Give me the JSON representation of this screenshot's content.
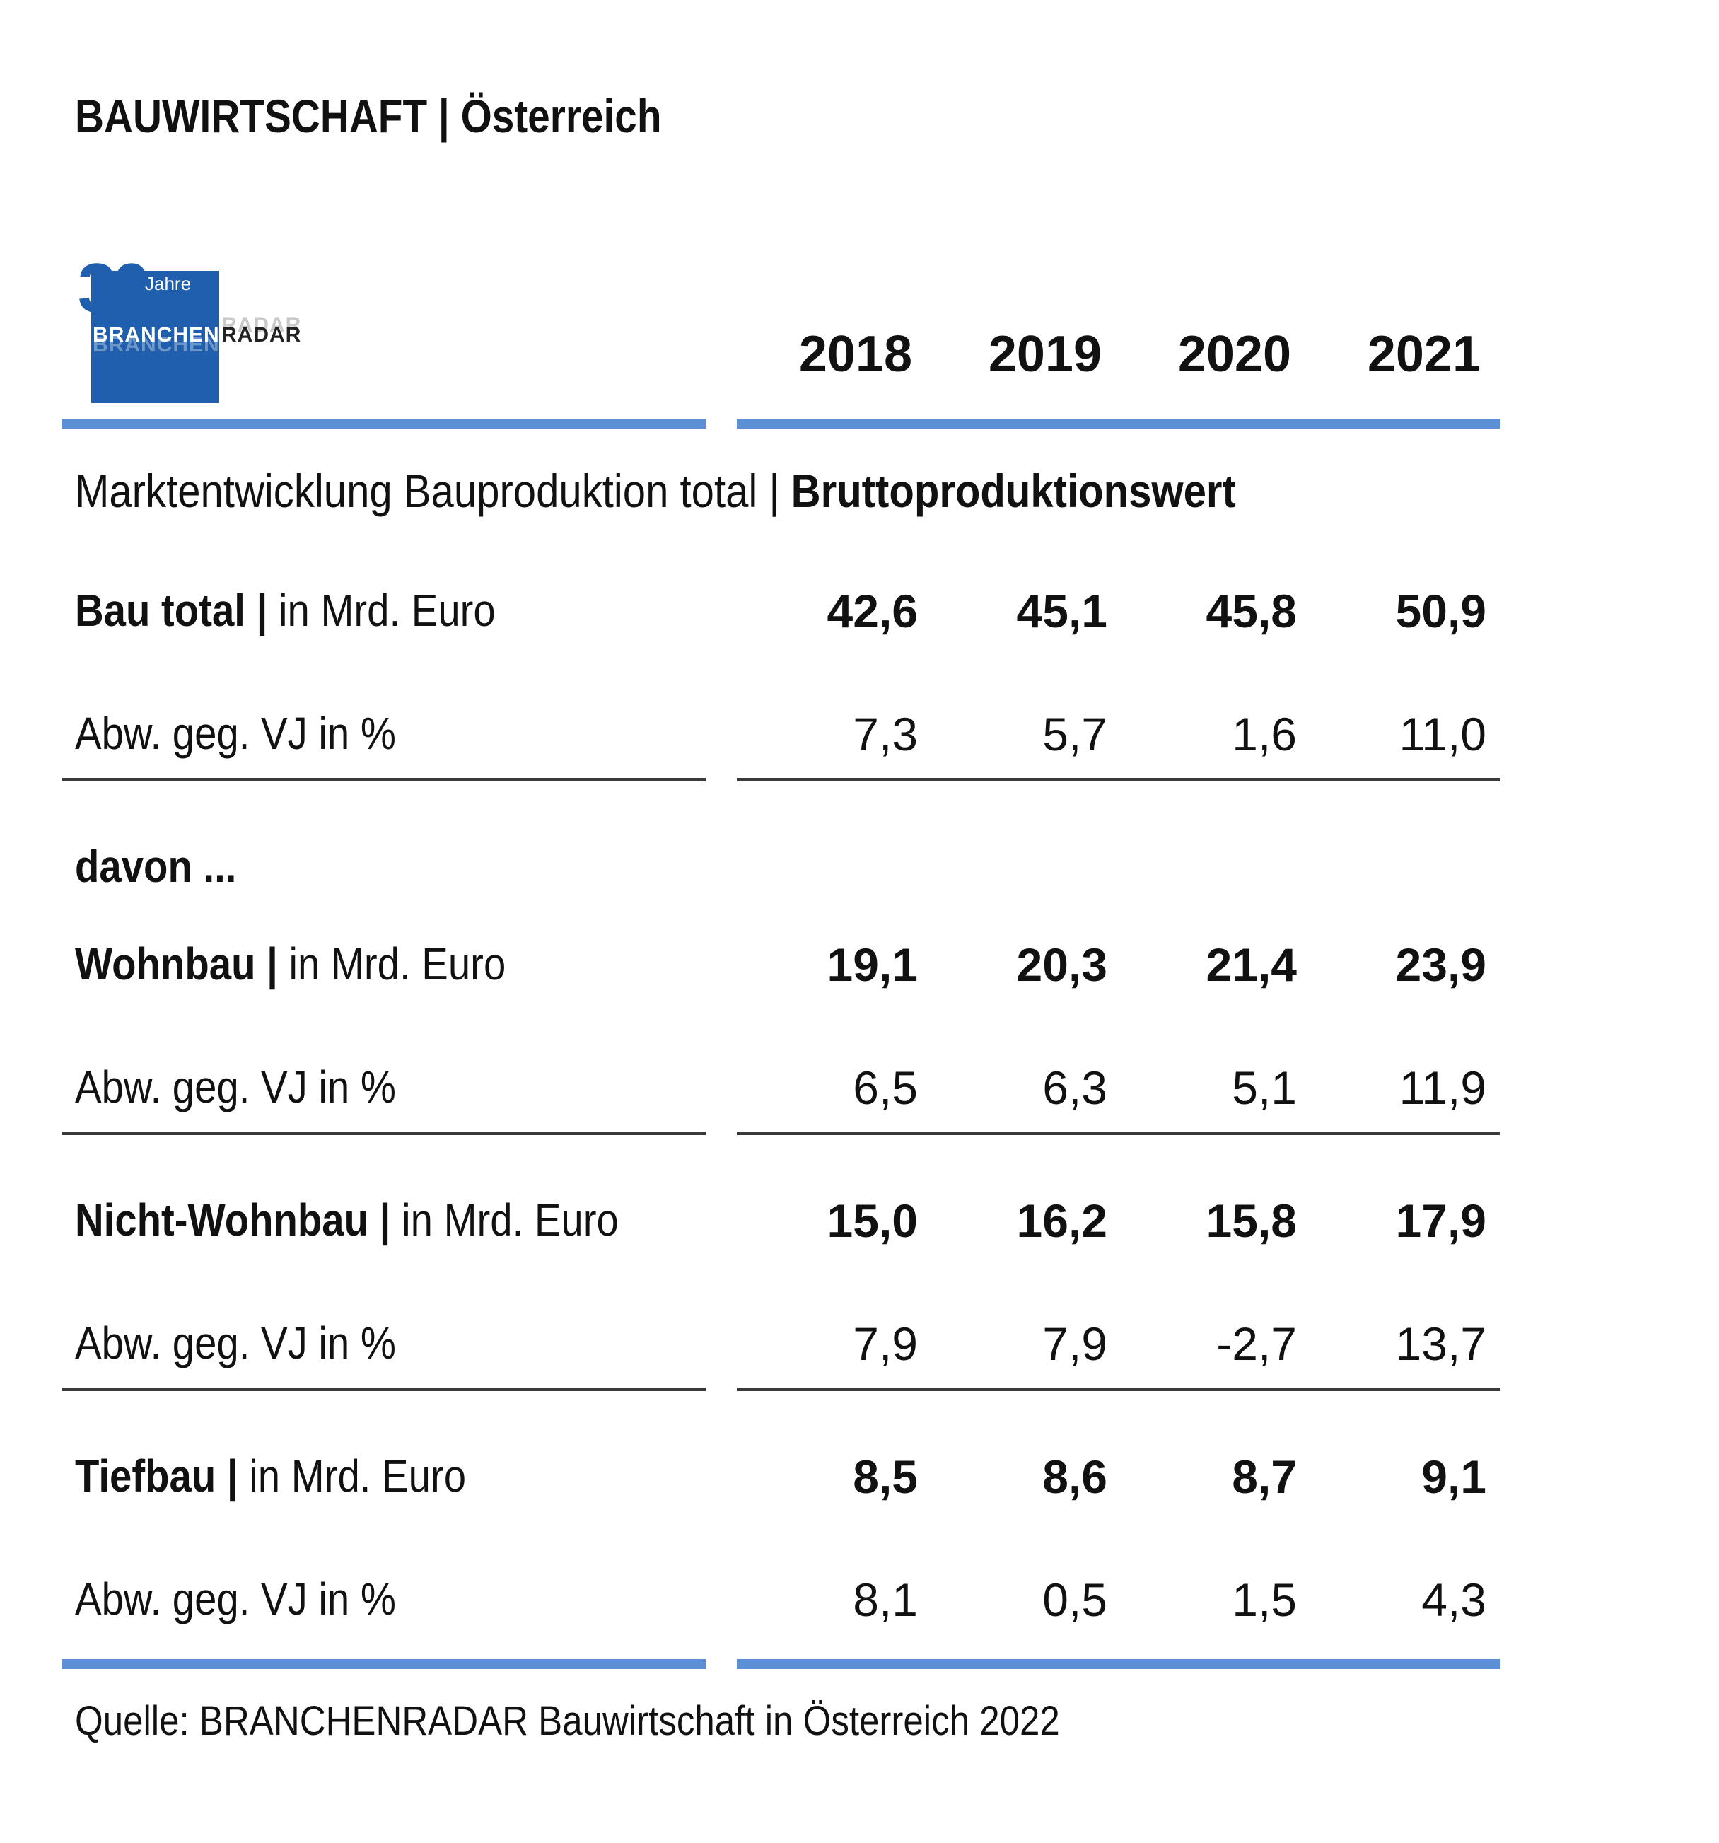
{
  "header": {
    "title": "BAUWIRTSCHAFT | Österreich"
  },
  "logo": {
    "number": "30",
    "jahre": "Jahre",
    "branchen": "BRANCHEN",
    "radar": "RADAR",
    "brand_color": "#1f5fad"
  },
  "table": {
    "years": [
      "2018",
      "2019",
      "2020",
      "2021"
    ],
    "section_title_prefix": "Marktentwicklung Bauproduktion total | ",
    "section_title_bold": "Bruttoproduktionswert",
    "davon_label": "davon ...",
    "rows": [
      {
        "strong": "Bau total |",
        "rest": " in Mrd. Euro",
        "values": [
          "42,6",
          "45,1",
          "45,8",
          "50,9"
        ],
        "bold": true
      },
      {
        "strong": "",
        "rest": "Abw. geg. VJ in %",
        "values": [
          "7,3",
          "5,7",
          "1,6",
          "11,0"
        ],
        "bold": false
      },
      {
        "strong": "Wohnbau |",
        "rest": " in Mrd. Euro",
        "values": [
          "19,1",
          "20,3",
          "21,4",
          "23,9"
        ],
        "bold": true
      },
      {
        "strong": "",
        "rest": "Abw. geg. VJ in %",
        "values": [
          "6,5",
          "6,3",
          "5,1",
          "11,9"
        ],
        "bold": false
      },
      {
        "strong": "Nicht-Wohnbau |",
        "rest": " in Mrd. Euro",
        "values": [
          "15,0",
          "16,2",
          "15,8",
          "17,9"
        ],
        "bold": true
      },
      {
        "strong": "",
        "rest": "Abw. geg. VJ in %",
        "values": [
          "7,9",
          "7,9",
          "-2,7",
          "13,7"
        ],
        "bold": false
      },
      {
        "strong": "Tiefbau |",
        "rest": " in Mrd. Euro",
        "values": [
          "8,5",
          "8,6",
          "8,7",
          "9,1"
        ],
        "bold": true
      },
      {
        "strong": "",
        "rest": "Abw. geg. VJ in %",
        "values": [
          "8,1",
          "0,5",
          "1,5",
          "4,3"
        ],
        "bold": false
      }
    ],
    "accent_color": "#5b8fd6"
  },
  "footer": {
    "source": "Quelle: BRANCHENRADAR Bauwirtschaft in Österreich 2022"
  }
}
